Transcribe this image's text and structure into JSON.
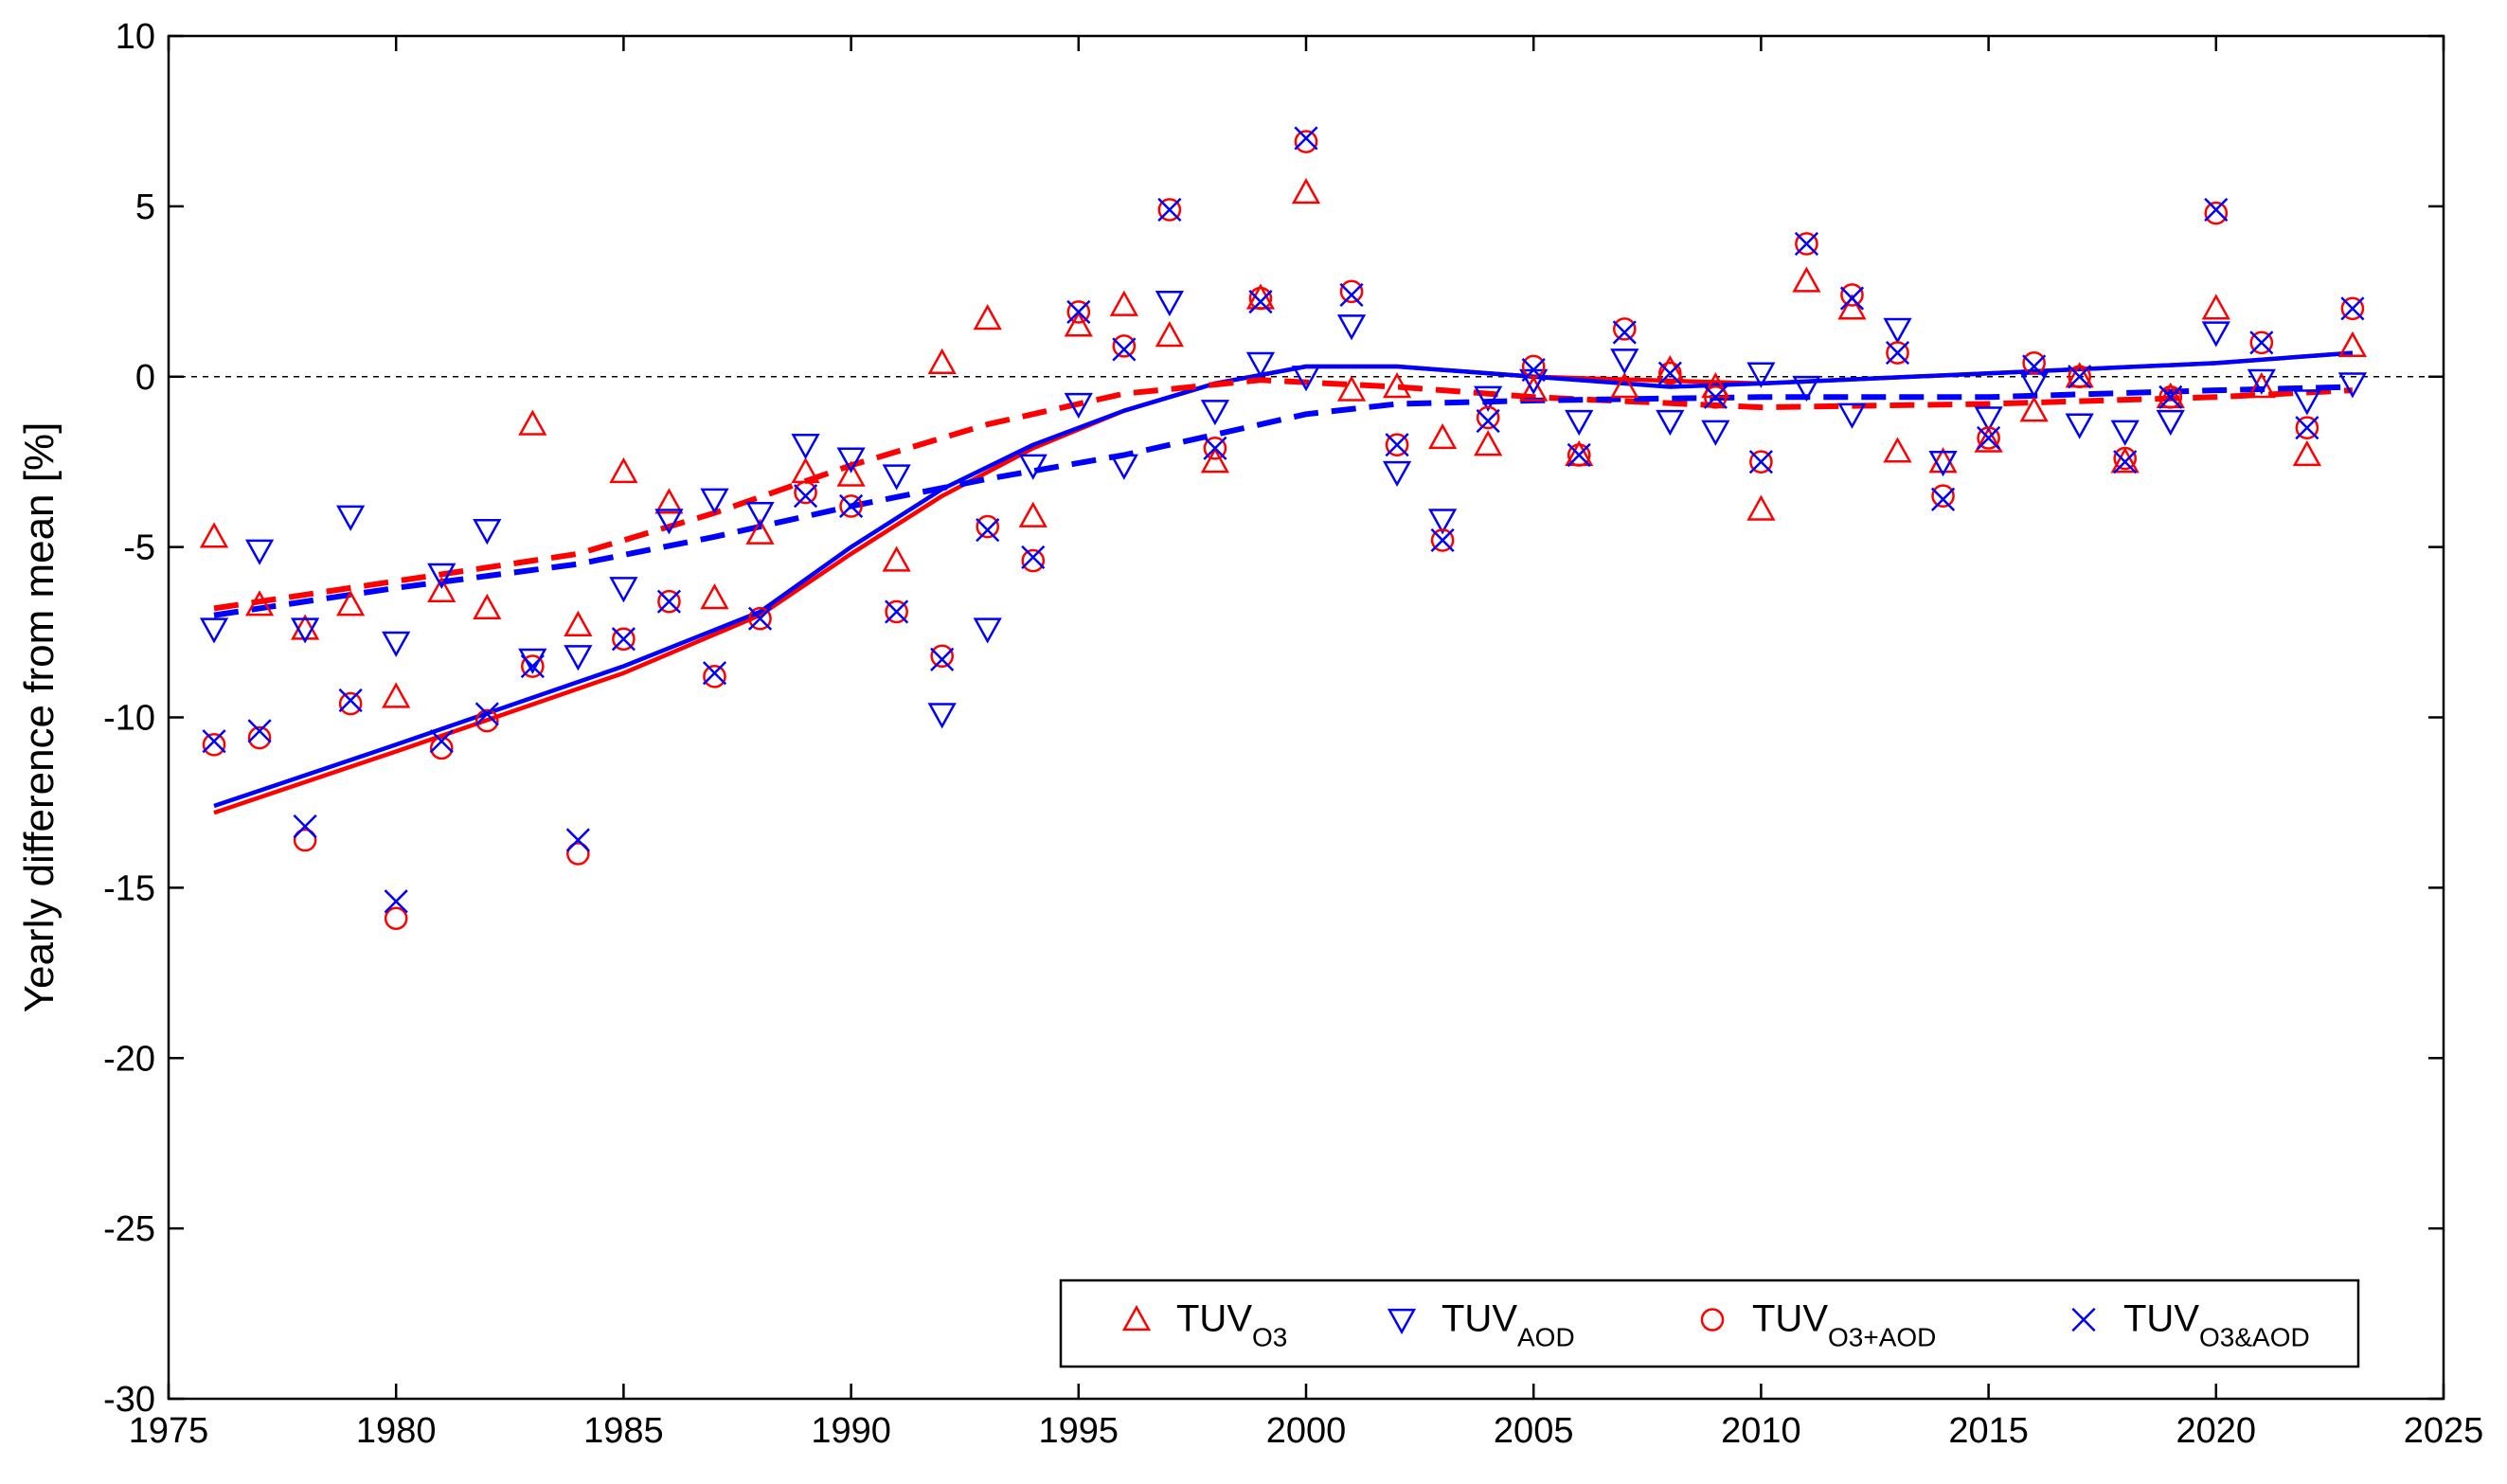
{
  "chart_data": {
    "type": "scatter",
    "title": "",
    "xlabel": "",
    "ylabel": "Yearly difference from mean [%]",
    "xlim": [
      1975,
      2025
    ],
    "ylim": [
      -30,
      10
    ],
    "xticks": [
      1975,
      1980,
      1985,
      1990,
      1995,
      2000,
      2005,
      2010,
      2015,
      2020,
      2025
    ],
    "yticks": [
      -30,
      -25,
      -20,
      -15,
      -10,
      -5,
      0,
      5,
      10
    ],
    "grid": false,
    "zero_line": true,
    "legend_position": "bottom-right",
    "x": [
      1976,
      1977,
      1978,
      1979,
      1980,
      1981,
      1982,
      1983,
      1984,
      1985,
      1986,
      1987,
      1988,
      1989,
      1990,
      1991,
      1992,
      1993,
      1994,
      1995,
      1996,
      1997,
      1998,
      1999,
      2000,
      2001,
      2002,
      2003,
      2004,
      2005,
      2006,
      2007,
      2008,
      2009,
      2010,
      2011,
      2012,
      2013,
      2014,
      2015,
      2016,
      2017,
      2018,
      2019,
      2020,
      2021,
      2022,
      2023
    ],
    "series": [
      {
        "name": "TUV",
        "sub": "O3",
        "marker": "triangle-up",
        "color": "#ff0000",
        "values": [
          -4.7,
          -6.7,
          -7.4,
          -6.7,
          -9.4,
          -6.3,
          -6.8,
          -1.4,
          -7.3,
          -2.8,
          -3.7,
          -6.5,
          -4.6,
          -2.8,
          -2.9,
          -5.4,
          0.4,
          1.7,
          -4.1,
          1.5,
          2.1,
          1.2,
          -2.5,
          2.3,
          5.4,
          -0.4,
          -0.3,
          -1.8,
          -2.0,
          -0.4,
          -2.3,
          -0.3,
          0.2,
          -0.3,
          -3.9,
          2.8,
          2.0,
          -2.2,
          -2.5,
          -1.9,
          -1.0,
          0.0,
          -2.5,
          -0.6,
          2.0,
          -0.3,
          -2.3,
          0.9
        ]
      },
      {
        "name": "TUV",
        "sub": "AOD",
        "marker": "triangle-down",
        "color": "#0000ff",
        "values": [
          -7.4,
          -5.1,
          -7.4,
          -4.1,
          -7.8,
          -5.8,
          -4.5,
          -8.3,
          -8.2,
          -6.2,
          -4.2,
          -3.6,
          -4.0,
          -2.0,
          -2.4,
          -2.9,
          -9.9,
          -7.4,
          -2.6,
          -0.8,
          -2.6,
          2.2,
          -1.0,
          0.4,
          0.0,
          1.5,
          -2.8,
          -4.2,
          -0.6,
          -0.1,
          -1.3,
          0.5,
          -1.3,
          -1.6,
          0.1,
          -0.3,
          -1.1,
          1.4,
          -2.5,
          -1.2,
          -0.2,
          -1.4,
          -1.6,
          -1.3,
          1.3,
          -0.1,
          -0.7,
          -0.2
        ]
      },
      {
        "name": "TUV",
        "sub": "O3+AOD",
        "marker": "circle",
        "color": "#ff0000",
        "values": [
          -10.8,
          -10.6,
          -13.6,
          -9.6,
          -15.9,
          -10.9,
          -10.1,
          -8.5,
          -14.0,
          -7.7,
          -6.6,
          -8.8,
          -7.1,
          -3.4,
          -3.8,
          -6.9,
          -8.2,
          -4.4,
          -5.4,
          1.9,
          0.9,
          4.9,
          -2.1,
          2.3,
          6.9,
          2.5,
          -2.0,
          -4.8,
          -1.2,
          0.3,
          -2.3,
          1.4,
          0.1,
          -0.6,
          -2.5,
          3.9,
          2.4,
          0.7,
          -3.5,
          -1.8,
          0.4,
          0.0,
          -2.4,
          -0.6,
          4.8,
          1.0,
          -1.5,
          2.0
        ]
      },
      {
        "name": "TUV",
        "sub": "O3&AOD",
        "marker": "x",
        "color": "#0000ff",
        "values": [
          -10.7,
          -10.4,
          -13.2,
          -9.5,
          -15.4,
          -10.7,
          -9.9,
          -8.5,
          -13.6,
          -7.7,
          -6.6,
          -8.7,
          -7.1,
          -3.5,
          -3.8,
          -6.9,
          -8.3,
          -4.5,
          -5.3,
          1.9,
          0.8,
          4.9,
          -2.1,
          2.2,
          7.0,
          2.4,
          -2.0,
          -4.8,
          -1.3,
          0.2,
          -2.3,
          1.3,
          0.1,
          -0.6,
          -2.5,
          3.9,
          2.3,
          0.7,
          -3.6,
          -1.8,
          0.3,
          0.0,
          -2.5,
          -0.6,
          4.9,
          1.0,
          -1.5,
          2.0
        ]
      }
    ],
    "trend_lines": [
      {
        "color": "#ff0000",
        "style": "solid",
        "x": [
          1976,
          1980,
          1985,
          1988,
          1990,
          1992,
          1994,
          1996,
          1998,
          2000,
          2002,
          2005,
          2010,
          2015,
          2020,
          2023
        ],
        "y": [
          -12.8,
          -11.0,
          -8.7,
          -7.0,
          -5.2,
          -3.5,
          -2.1,
          -1.0,
          -0.2,
          0.3,
          0.3,
          0.0,
          -0.2,
          0.1,
          0.4,
          0.7
        ]
      },
      {
        "color": "#0000ff",
        "style": "solid",
        "x": [
          1976,
          1980,
          1985,
          1988,
          1990,
          1992,
          1994,
          1996,
          1998,
          2000,
          2002,
          2005,
          2008,
          2010,
          2015,
          2020,
          2023
        ],
        "y": [
          -12.6,
          -10.8,
          -8.5,
          -6.9,
          -5.0,
          -3.3,
          -2.0,
          -1.0,
          -0.2,
          0.3,
          0.3,
          0.0,
          -0.3,
          -0.2,
          0.1,
          0.4,
          0.7
        ]
      },
      {
        "color": "#ff0000",
        "style": "dashed",
        "x": [
          1976,
          1980,
          1984,
          1987,
          1990,
          1993,
          1996,
          1999,
          2002,
          2005,
          2010,
          2015,
          2020,
          2023
        ],
        "y": [
          -6.8,
          -6.0,
          -5.2,
          -4.0,
          -2.6,
          -1.4,
          -0.5,
          -0.1,
          -0.3,
          -0.6,
          -0.9,
          -0.8,
          -0.6,
          -0.4
        ]
      },
      {
        "color": "#0000ff",
        "style": "dashed",
        "x": [
          1976,
          1980,
          1984,
          1987,
          1990,
          1993,
          1996,
          1998,
          2000,
          2002,
          2005,
          2010,
          2015,
          2020,
          2023
        ],
        "y": [
          -7.0,
          -6.2,
          -5.5,
          -4.7,
          -3.8,
          -3.0,
          -2.3,
          -1.7,
          -1.1,
          -0.8,
          -0.7,
          -0.6,
          -0.6,
          -0.4,
          -0.3
        ]
      }
    ]
  }
}
